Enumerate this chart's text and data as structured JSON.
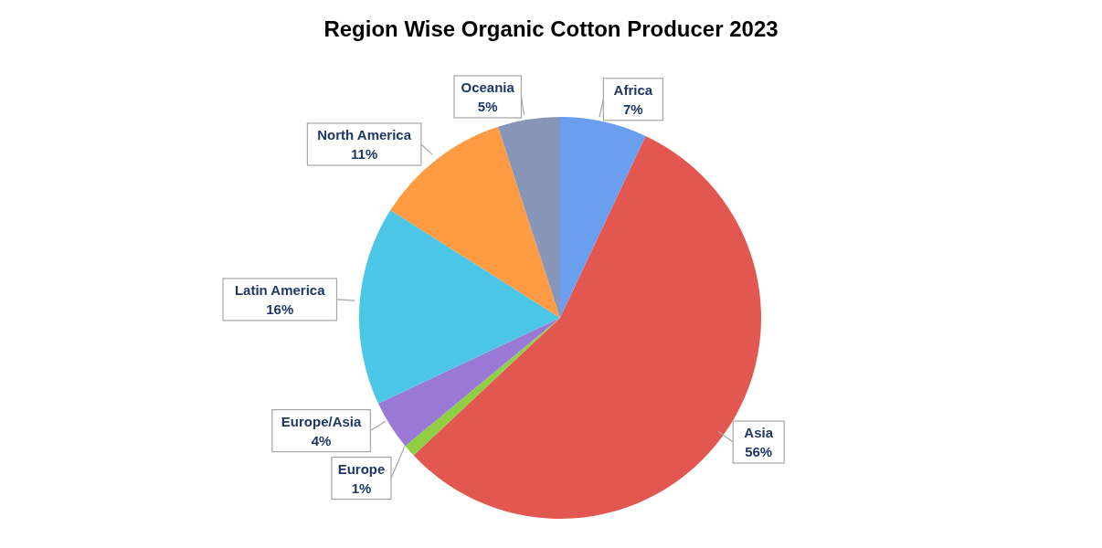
{
  "chart_data": {
    "type": "pie",
    "title": "Region Wise Organic Cotton Producer 2023",
    "categories": [
      "Africa",
      "Asia",
      "Europe",
      "Europe/Asia",
      "Latin America",
      "North America",
      "Oceania"
    ],
    "values": [
      7,
      56,
      1,
      4,
      16,
      11,
      5
    ],
    "value_labels": [
      "7%",
      "56%",
      "1%",
      "4%",
      "16%",
      "11%",
      "5%"
    ],
    "colors": [
      "#6a9ff0",
      "#e2574f",
      "#8fd043",
      "#9a78d6",
      "#4cc6e6",
      "#ff9b42",
      "#8796b8"
    ]
  }
}
